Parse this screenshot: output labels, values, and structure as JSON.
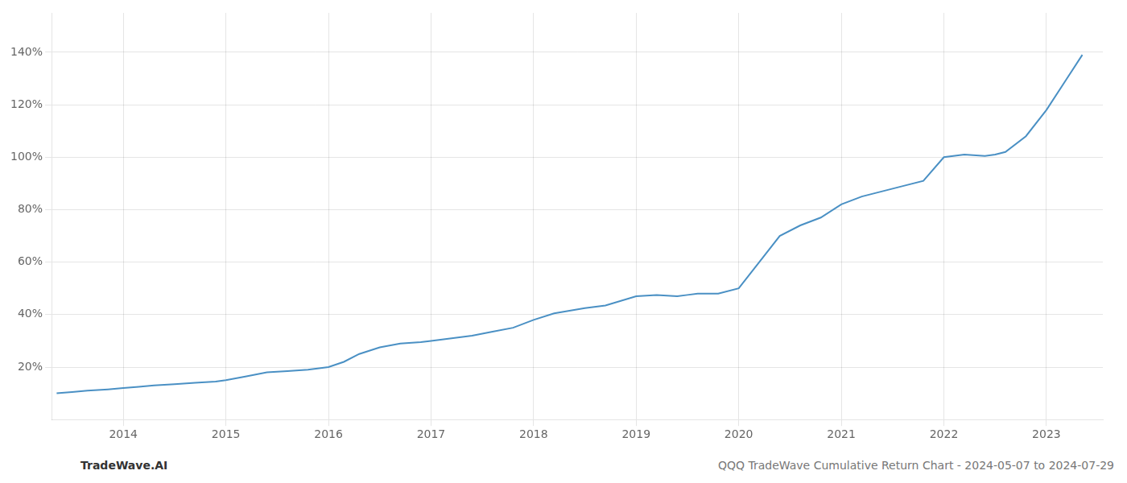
{
  "chart_data": {
    "type": "line",
    "color": "#4a90c4",
    "grid": true,
    "annotations": [
      "TradeWave.AI",
      "QQQ TradeWave Cumulative Return Chart - 2024-05-07 to 2024-07-29"
    ],
    "xlim": [
      2013.3,
      2023.55
    ],
    "xticks": [
      2014,
      2015,
      2016,
      2017,
      2018,
      2019,
      2020,
      2021,
      2022,
      2023
    ],
    "ylim": [
      0,
      155
    ],
    "yticks": [
      {
        "value": 20,
        "label": "20%"
      },
      {
        "value": 40,
        "label": "40%"
      },
      {
        "value": 60,
        "label": "60%"
      },
      {
        "value": 80,
        "label": "80%"
      },
      {
        "value": 100,
        "label": "100%"
      },
      {
        "value": 120,
        "label": "120%"
      },
      {
        "value": 140,
        "label": "140%"
      }
    ],
    "x": [
      2013.35,
      2013.5,
      2013.65,
      2013.85,
      2014.0,
      2014.15,
      2014.3,
      2014.5,
      2014.7,
      2014.9,
      2015.0,
      2015.2,
      2015.4,
      2015.6,
      2015.8,
      2016.0,
      2016.15,
      2016.3,
      2016.5,
      2016.7,
      2016.9,
      2017.0,
      2017.2,
      2017.4,
      2017.6,
      2017.8,
      2018.0,
      2018.2,
      2018.5,
      2018.7,
      2019.0,
      2019.2,
      2019.4,
      2019.5,
      2019.6,
      2019.8,
      2020.0,
      2020.2,
      2020.4,
      2020.6,
      2020.8,
      2021.0,
      2021.2,
      2021.4,
      2021.6,
      2021.8,
      2022.0,
      2022.2,
      2022.4,
      2022.5,
      2022.6,
      2022.8,
      2023.0,
      2023.2,
      2023.35
    ],
    "values": [
      10.0,
      10.5,
      11.0,
      11.5,
      12.0,
      12.5,
      13.0,
      13.5,
      14.0,
      14.5,
      15.0,
      16.5,
      18.0,
      18.5,
      19.0,
      20.0,
      22.0,
      25.0,
      27.5,
      29.0,
      29.5,
      30.0,
      31.0,
      32.0,
      33.5,
      35.0,
      38.0,
      40.5,
      42.5,
      43.5,
      47.0,
      47.5,
      47.0,
      47.5,
      48.0,
      48.0,
      50.0,
      60.0,
      70.0,
      74.0,
      77.0,
      82.0,
      85.0,
      87.0,
      89.0,
      91.0,
      100.0,
      101.0,
      100.5,
      101.0,
      102.0,
      108.0,
      118.0,
      130.0,
      139.0
    ]
  }
}
